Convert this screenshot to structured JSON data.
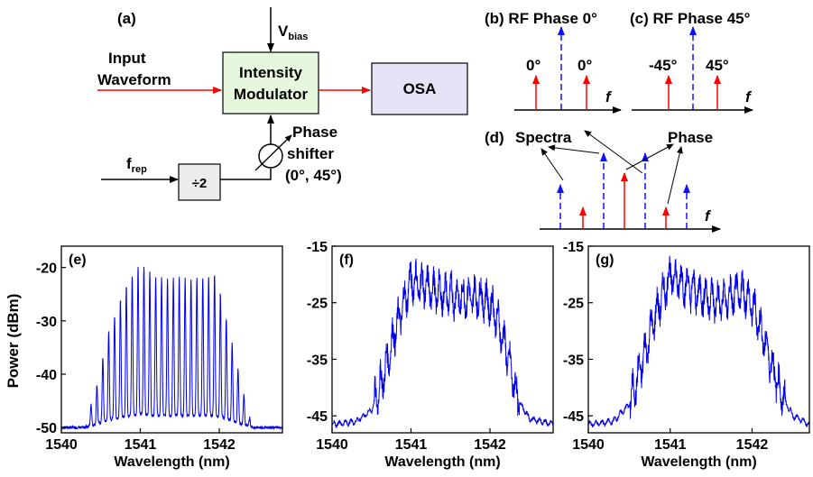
{
  "diagram": {
    "panel_a": {
      "label": "(a)",
      "vbias_main": "V",
      "vbias_sub": "bias",
      "input_line1": "Input",
      "input_line2": "Waveform",
      "modulator_line1": "Intensity",
      "modulator_line2": "Modulator",
      "osa": "OSA",
      "frep_main": "f",
      "frep_sub": "rep",
      "divider": "÷2",
      "phase_line1": "Phase",
      "phase_line2": "shifter",
      "phase_line3": "(0°, 45°)"
    },
    "panel_b": {
      "label": "(b) RF Phase 0°",
      "left": "0°",
      "right": "0°",
      "axis": "f"
    },
    "panel_c": {
      "label": "(c) RF Phase 45°",
      "left": "-45°",
      "right": "45°",
      "axis": "f"
    },
    "panel_d": {
      "label": "(d)",
      "spectra": "Spectra",
      "phase": "Phase",
      "axis": "f"
    },
    "colors": {
      "red": "#ff0000",
      "blue": "#1010ff",
      "mod_fill": "#e6f7de",
      "osa_fill": "#e4e4f6",
      "div_fill": "#ececec",
      "trace": "#0000ee"
    }
  },
  "chart_data": [
    {
      "type": "line",
      "panel_label": "(e)",
      "xlabel": "Wavelength (nm)",
      "ylabel": "Power (dBm)",
      "xlim": [
        1540,
        1542.8
      ],
      "ylim": [
        -51,
        -16
      ],
      "xticks": [
        1540,
        1541,
        1542
      ],
      "yticks": [
        -50,
        -40,
        -30,
        -20
      ],
      "x": [
        1540.0,
        1540.3,
        1540.45,
        1540.6,
        1540.8,
        1541.0,
        1541.2,
        1541.5,
        1541.8,
        1541.95,
        1542.1,
        1542.25,
        1542.4,
        1542.8
      ],
      "y": [
        -50,
        -49.5,
        -42,
        -32,
        -24,
        -19,
        -22,
        -22,
        -22,
        -21,
        -30,
        -40,
        -49,
        -50
      ],
      "series_style": "comb"
    },
    {
      "type": "line",
      "panel_label": "(f)",
      "xlabel": "Wavelength (nm)",
      "ylabel": "",
      "xlim": [
        1540,
        1542.8
      ],
      "ylim": [
        -48,
        -15
      ],
      "xticks": [
        1540,
        1541,
        1542
      ],
      "yticks": [
        -45,
        -35,
        -25,
        -15
      ],
      "x": [
        1540.0,
        1540.3,
        1540.5,
        1540.65,
        1540.8,
        1541.0,
        1541.3,
        1541.6,
        1541.9,
        1542.05,
        1542.2,
        1542.35,
        1542.5,
        1542.8
      ],
      "y": [
        -46.5,
        -46,
        -44,
        -38,
        -30,
        -21,
        -23,
        -24,
        -24,
        -26,
        -33,
        -42,
        -45.5,
        -46.5
      ],
      "series_style": "noisy"
    },
    {
      "type": "line",
      "panel_label": "(g)",
      "xlabel": "Wavelength (nm)",
      "ylabel": "",
      "xlim": [
        1540,
        1542.7
      ],
      "ylim": [
        -48,
        -15
      ],
      "xticks": [
        1540,
        1541,
        1542
      ],
      "yticks": [
        -45,
        -35,
        -25,
        -15
      ],
      "x": [
        1540.0,
        1540.3,
        1540.5,
        1540.65,
        1540.8,
        1541.0,
        1541.3,
        1541.6,
        1541.9,
        1542.05,
        1542.2,
        1542.35,
        1542.5,
        1542.7
      ],
      "y": [
        -46.5,
        -46,
        -43,
        -36,
        -28,
        -20,
        -23,
        -25,
        -23,
        -27,
        -34,
        -41,
        -45,
        -46.5
      ],
      "series_style": "noisy"
    }
  ]
}
